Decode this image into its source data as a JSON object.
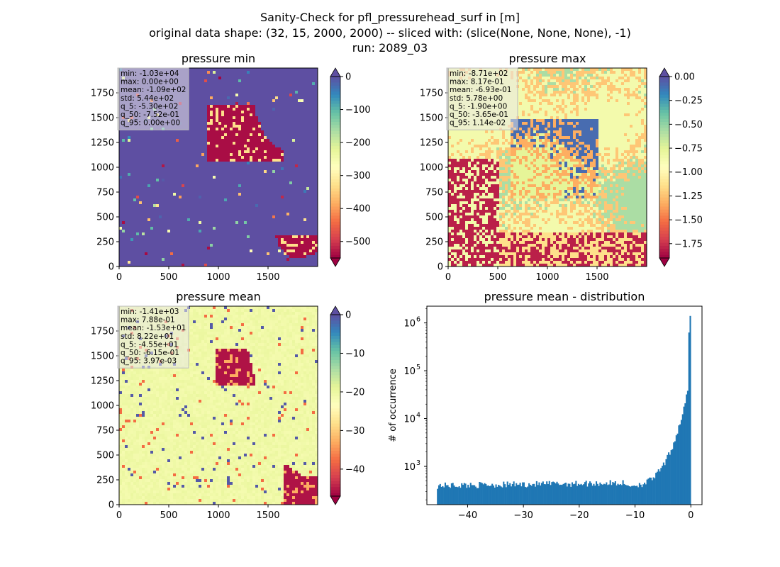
{
  "figure": {
    "title_line1": "Sanity-Check for pfl_pressurehead_surf in [m]",
    "title_line2": "original data shape: (32, 15, 2000, 2000) -- sliced with: (slice(None, None, None), -1)",
    "title_line3": "run: 2089_03"
  },
  "colors": {
    "spectral": [
      "#9e0142",
      "#d53e4f",
      "#f46d43",
      "#fdae61",
      "#fee08b",
      "#ffffbf",
      "#e6f598",
      "#abdda4",
      "#66c2a5",
      "#3288bd",
      "#5e4fa2"
    ],
    "hist_bar": "#1f77b4"
  },
  "chart_data": [
    {
      "type": "heatmap",
      "title": "pressure min",
      "xticks": [
        "0",
        "500",
        "1000",
        "1500"
      ],
      "yticks": [
        "0",
        "250",
        "500",
        "750",
        "1000",
        "1250",
        "1500",
        "1750"
      ],
      "xlim": [
        0,
        2000
      ],
      "ylim": [
        0,
        2000
      ],
      "stats": [
        "min: -1.03e+04",
        "max: 0.00e+00",
        "mean: -1.09e+02",
        "std: 5.44e+02",
        "q_5: -5.30e+02",
        "q_50: -7.52e-01",
        "q_95: 0.00e+00"
      ],
      "colorbar": {
        "vmin": -550,
        "vmax": 0,
        "ticks": [
          "0",
          "−100",
          "−200",
          "−300",
          "−400",
          "−500"
        ],
        "tick_values": [
          0,
          -100,
          -200,
          -300,
          -400,
          -500
        ],
        "extend": "both"
      }
    },
    {
      "type": "heatmap",
      "title": "pressure max",
      "xticks": [
        "0",
        "500",
        "1000",
        "1500"
      ],
      "yticks": [
        "0",
        "250",
        "500",
        "750",
        "1000",
        "1250",
        "1500",
        "1750"
      ],
      "xlim": [
        0,
        2000
      ],
      "ylim": [
        0,
        2000
      ],
      "stats": [
        "min: -8.71e+02",
        "max: 8.17e-01",
        "mean: -6.93e-01",
        "std: 5.78e+00",
        "q_5: -1.90e+00",
        "q_50: -3.65e-01",
        "q_95: 1.14e-02"
      ],
      "colorbar": {
        "vmin": -1.9,
        "vmax": 0.0,
        "ticks": [
          "0.00",
          "−0.25",
          "−0.50",
          "−0.75",
          "−1.00",
          "−1.25",
          "−1.50",
          "−1.75"
        ],
        "tick_values": [
          0,
          -0.25,
          -0.5,
          -0.75,
          -1.0,
          -1.25,
          -1.5,
          -1.75
        ],
        "extend": "both"
      }
    },
    {
      "type": "heatmap",
      "title": "pressure mean",
      "xticks": [
        "0",
        "500",
        "1000",
        "1500"
      ],
      "yticks": [
        "0",
        "250",
        "500",
        "750",
        "1000",
        "1250",
        "1500",
        "1750"
      ],
      "xlim": [
        0,
        2000
      ],
      "ylim": [
        0,
        2000
      ],
      "stats": [
        "min: -1.41e+03",
        "max: 7.88e-01",
        "mean: -1.53e+01",
        "std: 8.22e+01",
        "q_5: -4.55e+01",
        "q_50: -6.15e-01",
        "q_95: 3.97e-03"
      ],
      "colorbar": {
        "vmin": -47,
        "vmax": 0,
        "ticks": [
          "0",
          "−10",
          "−20",
          "−30",
          "−40"
        ],
        "tick_values": [
          0,
          -10,
          -20,
          -30,
          -40
        ],
        "extend": "both"
      }
    },
    {
      "type": "bar",
      "title": "pressure mean - distribution",
      "ylabel": "# of occurrence",
      "yscale": "log",
      "xlim": [
        -47.3,
        2.0
      ],
      "ylim_exp": [
        2.2,
        6.35
      ],
      "xticks": [
        "−40",
        "−30",
        "−20",
        "−10",
        "0"
      ],
      "xtick_values": [
        -40,
        -30,
        -20,
        -10,
        0
      ],
      "yticks": [
        "10",
        "10",
        "10",
        "10"
      ],
      "ytick_exps": [
        "3",
        "4",
        "5",
        "6"
      ],
      "ytick_values": [
        3,
        4,
        5,
        6
      ],
      "bin_range": [
        -45.5,
        0
      ],
      "bins": 200,
      "description_values": {
        "flat_region_level": 400,
        "peak_value": 1400000
      }
    }
  ]
}
